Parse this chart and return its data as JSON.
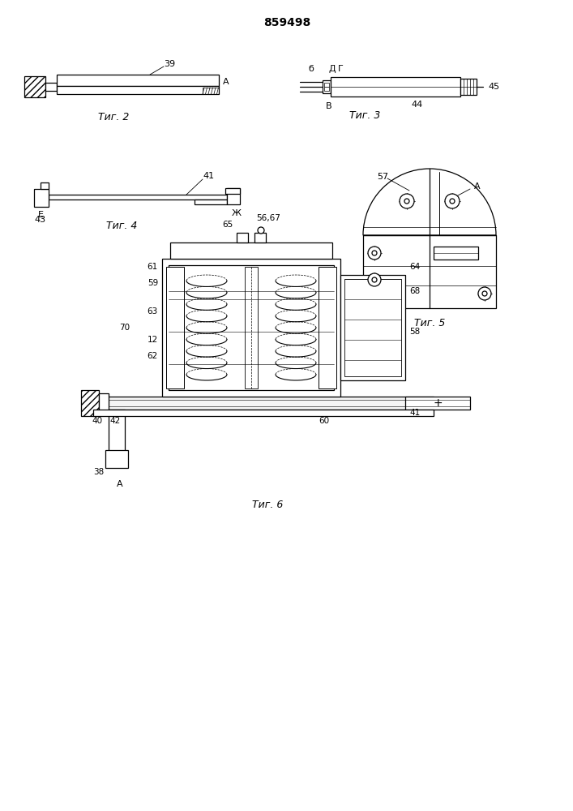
{
  "title": "859498",
  "bg": "#ffffff",
  "lc": "#000000",
  "fig2_caption": "Τиг. 2",
  "fig3_caption": "Τиг. 3",
  "fig4_caption": "Τиг. 4",
  "fig5_caption": "Τиг. 5",
  "fig6_caption": "Τиг. 6"
}
